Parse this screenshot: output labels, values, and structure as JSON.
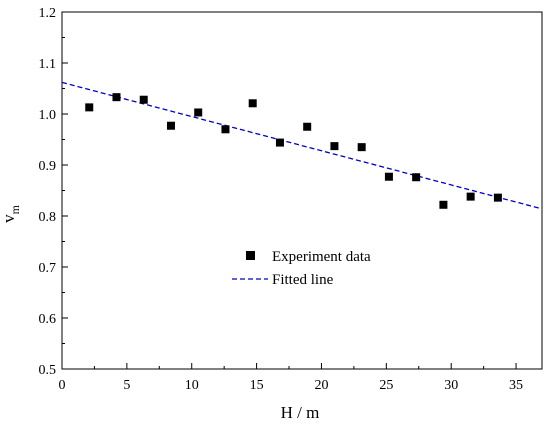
{
  "chart_data": {
    "type": "scatter",
    "title": "",
    "xlabel": "H / m",
    "ylabel": "v",
    "ylabel_sub": "m",
    "xlim": [
      0,
      37
    ],
    "ylim": [
      0.5,
      1.2
    ],
    "xticks": [
      0,
      5,
      10,
      15,
      20,
      25,
      30,
      35
    ],
    "yticks": [
      0.5,
      0.6,
      0.7,
      0.8,
      0.9,
      1.0,
      1.1,
      1.2
    ],
    "xtick_labels": [
      "0",
      "5",
      "10",
      "15",
      "20",
      "25",
      "30",
      "35"
    ],
    "ytick_labels": [
      "0.5",
      "0.6",
      "0.7",
      "0.8",
      "0.9",
      "1.0",
      "1.1",
      "1.2"
    ],
    "grid": false,
    "legend_position": "center",
    "series": [
      {
        "name": "Experiment data",
        "kind": "scatter",
        "marker": "square",
        "color": "#000000",
        "x": [
          2.1,
          4.2,
          6.3,
          8.4,
          10.5,
          12.6,
          14.7,
          16.8,
          18.9,
          21.0,
          23.1,
          25.2,
          27.3,
          29.4,
          31.5,
          33.6
        ],
        "y": [
          1.013,
          1.033,
          1.028,
          0.977,
          1.003,
          0.97,
          1.021,
          0.944,
          0.975,
          0.937,
          0.935,
          0.877,
          0.876,
          0.822,
          0.838,
          0.836
        ]
      },
      {
        "name": "Fitted line",
        "kind": "line",
        "dash": "dashed",
        "color": "#0000cc",
        "x": [
          0,
          37
        ],
        "y": [
          1.062,
          0.814
        ]
      }
    ]
  }
}
